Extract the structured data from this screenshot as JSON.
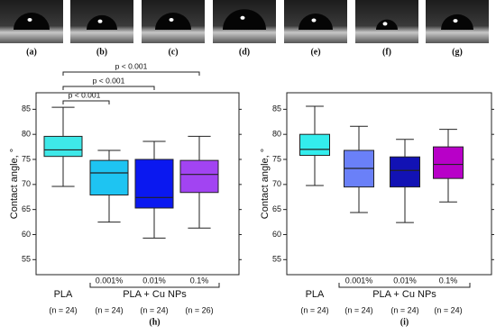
{
  "photos": [
    {
      "label": "(a)"
    },
    {
      "label": "(b)"
    },
    {
      "label": "(c)"
    },
    {
      "label": "(d)"
    },
    {
      "label": "(e)"
    },
    {
      "label": "(f)"
    },
    {
      "label": "(g)"
    }
  ],
  "chart_data": [
    {
      "type": "box",
      "panel_label": "(h)",
      "ylabel": "Contact angle, °",
      "categories": [
        "PLA",
        "0.001%",
        "0.01%",
        "0.1%"
      ],
      "n_labels": [
        "(n = 24)",
        "(n = 24)",
        "(n = 24)",
        "(n = 26)"
      ],
      "group_label": "PLA + Cu NPs",
      "values": [
        [
          69.6,
          75.6,
          76.9,
          79.6,
          85.4
        ],
        [
          62.5,
          67.9,
          72.3,
          74.8,
          76.8
        ],
        [
          59.3,
          65.3,
          67.4,
          75.0,
          78.6
        ],
        [
          61.3,
          68.4,
          72.0,
          74.8,
          79.6
        ]
      ],
      "colors": [
        "#3ee8e8",
        "#1ec4f2",
        "#0a18f0",
        "#a244f2"
      ],
      "annotations": [
        "p < 0.001",
        "p < 0.001",
        "p < 0.001"
      ],
      "ylim": [
        52,
        88.3
      ],
      "yticks": [
        55,
        60,
        65,
        70,
        75,
        80,
        85
      ]
    },
    {
      "type": "box",
      "panel_label": "(i)",
      "ylabel": "Contact angle, °",
      "categories": [
        "PLA",
        "0.001%",
        "0.01%",
        "0.1%"
      ],
      "n_labels": [
        "(n = 24)",
        "(n = 24)",
        "(n = 24)",
        "(n = 24)"
      ],
      "group_label": "PLA + Cu NPs",
      "values": [
        [
          69.8,
          75.8,
          77.0,
          80.0,
          85.6
        ],
        [
          64.4,
          69.5,
          73.2,
          76.8,
          81.6
        ],
        [
          62.4,
          69.5,
          72.8,
          75.5,
          79.0
        ],
        [
          66.5,
          71.2,
          74.0,
          77.5,
          81.0
        ]
      ],
      "colors": [
        "#33eded",
        "#6a80f8",
        "#1212b4",
        "#b800c8"
      ],
      "ylim": [
        52,
        88.3
      ],
      "yticks": [
        55,
        60,
        65,
        70,
        75,
        80,
        85
      ]
    }
  ]
}
